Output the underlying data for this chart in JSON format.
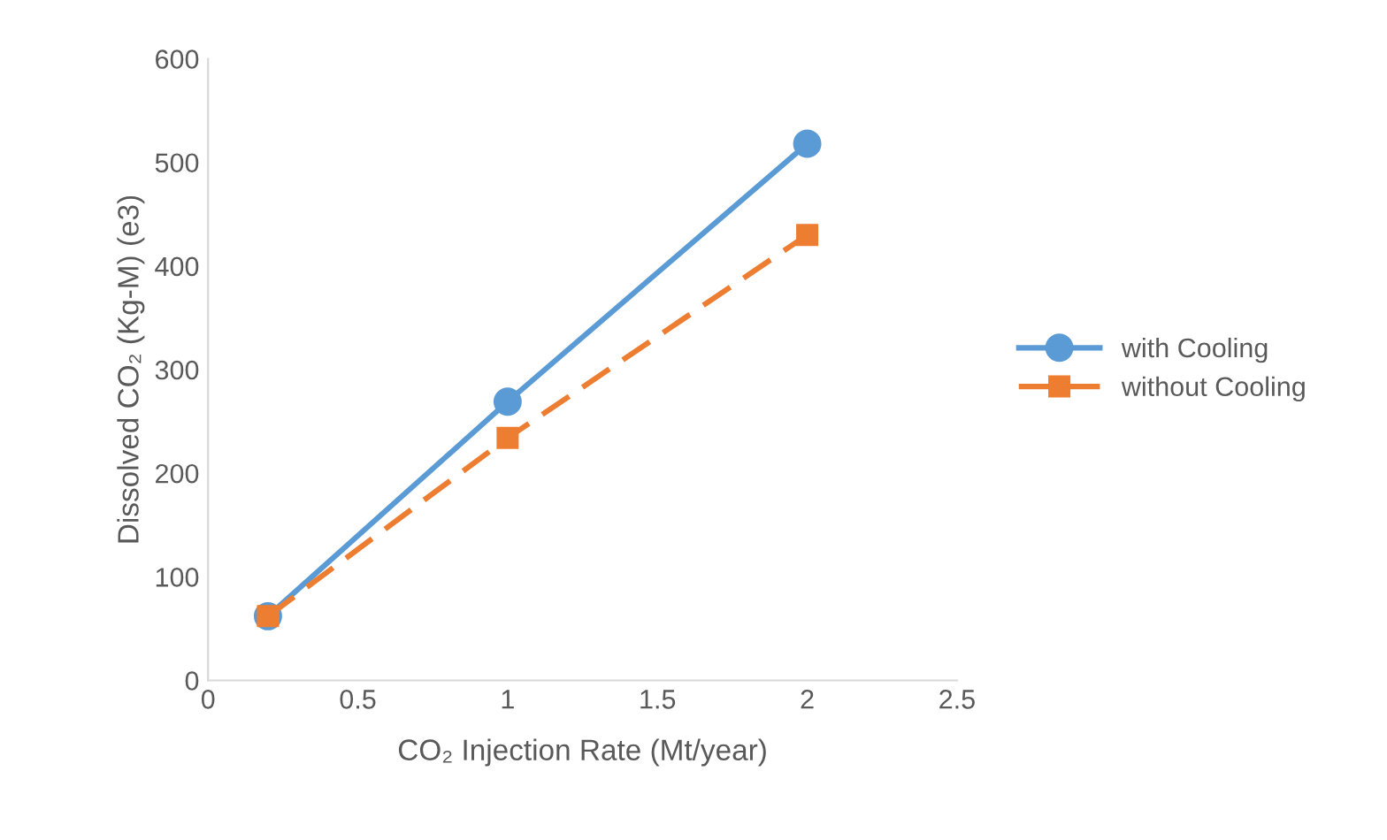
{
  "chart_data": {
    "type": "line",
    "xlabel": "CO₂ Injection Rate (Mt/year)",
    "ylabel": "Dissolved CO₂ (Kg-M) (e3)",
    "x": [
      0.2,
      1,
      2
    ],
    "series": [
      {
        "name": "with Cooling",
        "color": "#5b9bd5",
        "values": [
          62,
          269,
          518
        ],
        "marker": "circle",
        "line_style": "solid"
      },
      {
        "name": "without Cooling",
        "color": "#ed7d31",
        "values": [
          62,
          234,
          430
        ],
        "marker": "square",
        "line_style": "dashed"
      }
    ],
    "xlim": [
      0,
      2.5
    ],
    "xticks": [
      0,
      0.5,
      1,
      1.5,
      2,
      2.5
    ],
    "ylim": [
      0,
      600
    ],
    "yticks": [
      0,
      100,
      200,
      300,
      400,
      500,
      600
    ],
    "grid": false,
    "legend": "right"
  }
}
